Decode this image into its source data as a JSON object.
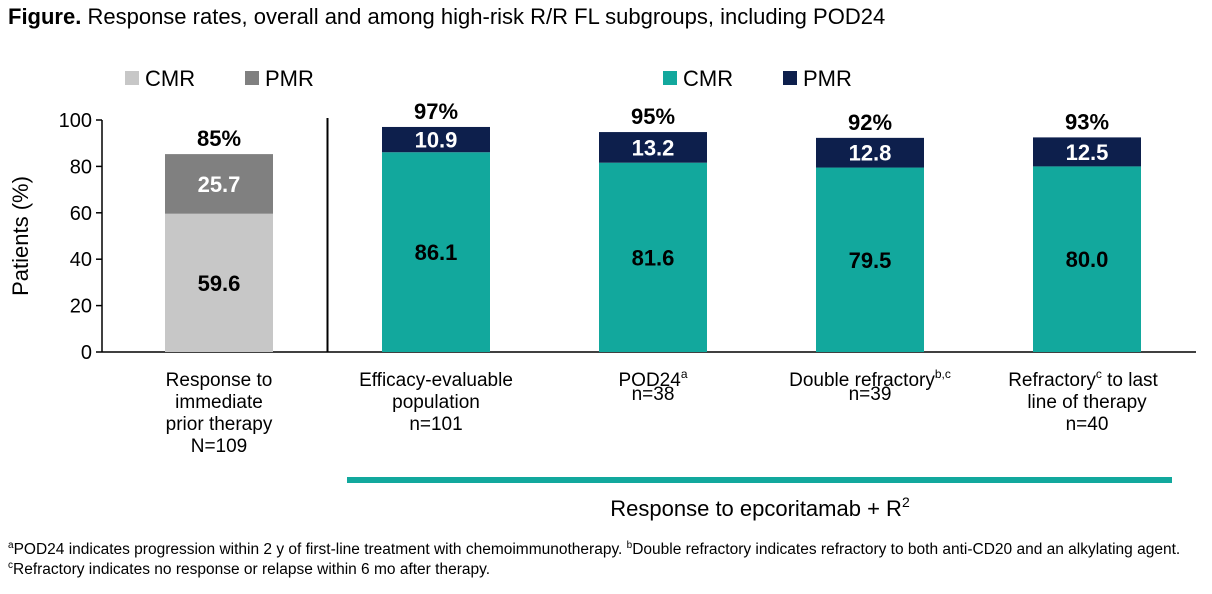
{
  "title": {
    "prefix": "Figure.",
    "text": "Response rates, overall and among high-risk R/R FL subgroups, including POD24"
  },
  "chart_data": {
    "type": "bar",
    "stacked": true,
    "ylabel": "Patients (%)",
    "ylim": [
      0,
      100
    ],
    "yticks": [
      0,
      20,
      40,
      60,
      80,
      100
    ],
    "grid": false,
    "legends": [
      {
        "placement": "top-left",
        "entries": [
          {
            "name": "CMR",
            "color": "#c7c7c7"
          },
          {
            "name": "PMR",
            "color": "#808080"
          }
        ]
      },
      {
        "placement": "top-right",
        "entries": [
          {
            "name": "CMR",
            "color": "#12a89d"
          },
          {
            "name": "PMR",
            "color": "#0d1f4c"
          }
        ]
      }
    ],
    "categories": [
      {
        "lines": [
          "Response to",
          "immediate",
          "prior therapy",
          "N=109"
        ]
      },
      {
        "lines": [
          "Efficacy-evaluable",
          "population",
          "n=101"
        ]
      },
      {
        "lines": [
          "POD24",
          "n=38"
        ],
        "sup": "a"
      },
      {
        "lines": [
          "Double refractory",
          "n=39"
        ],
        "sup": "b,c"
      },
      {
        "lines": [
          "Refractory",
          "to last",
          "line of therapy",
          "n=40"
        ],
        "sup": "c"
      }
    ],
    "series": [
      {
        "name": "CMR",
        "values": [
          59.6,
          86.1,
          81.6,
          79.5,
          80.0
        ],
        "labels": [
          "59.6",
          "86.1",
          "81.6",
          "79.5",
          "80.0"
        ],
        "colors": [
          "#c7c7c7",
          "#12a89d",
          "#12a89d",
          "#12a89d",
          "#12a89d"
        ]
      },
      {
        "name": "PMR",
        "values": [
          25.7,
          10.9,
          13.2,
          12.8,
          12.5
        ],
        "labels": [
          "25.7",
          "10.9",
          "13.2",
          "12.8",
          "12.5"
        ],
        "colors": [
          "#808080",
          "#0d1f4c",
          "#0d1f4c",
          "#0d1f4c",
          "#0d1f4c"
        ]
      }
    ],
    "totals": [
      "85%",
      "97%",
      "95%",
      "92%",
      "93%"
    ],
    "group_label": {
      "text": "Response to epcoritamab + R",
      "sup": "2",
      "color": "#12a89d"
    }
  },
  "footnotes": {
    "a_marker": "a",
    "a_text": "POD24 indicates progression within 2 y of first-line treatment with chemoimmunotherapy.",
    "b_marker": "b",
    "b_text": "Double refractory indicates refractory to both anti-CD20 and an alkylating agent.",
    "c_marker": "c",
    "c_text": "Refractory indicates no response or relapse within 6 mo after therapy."
  }
}
